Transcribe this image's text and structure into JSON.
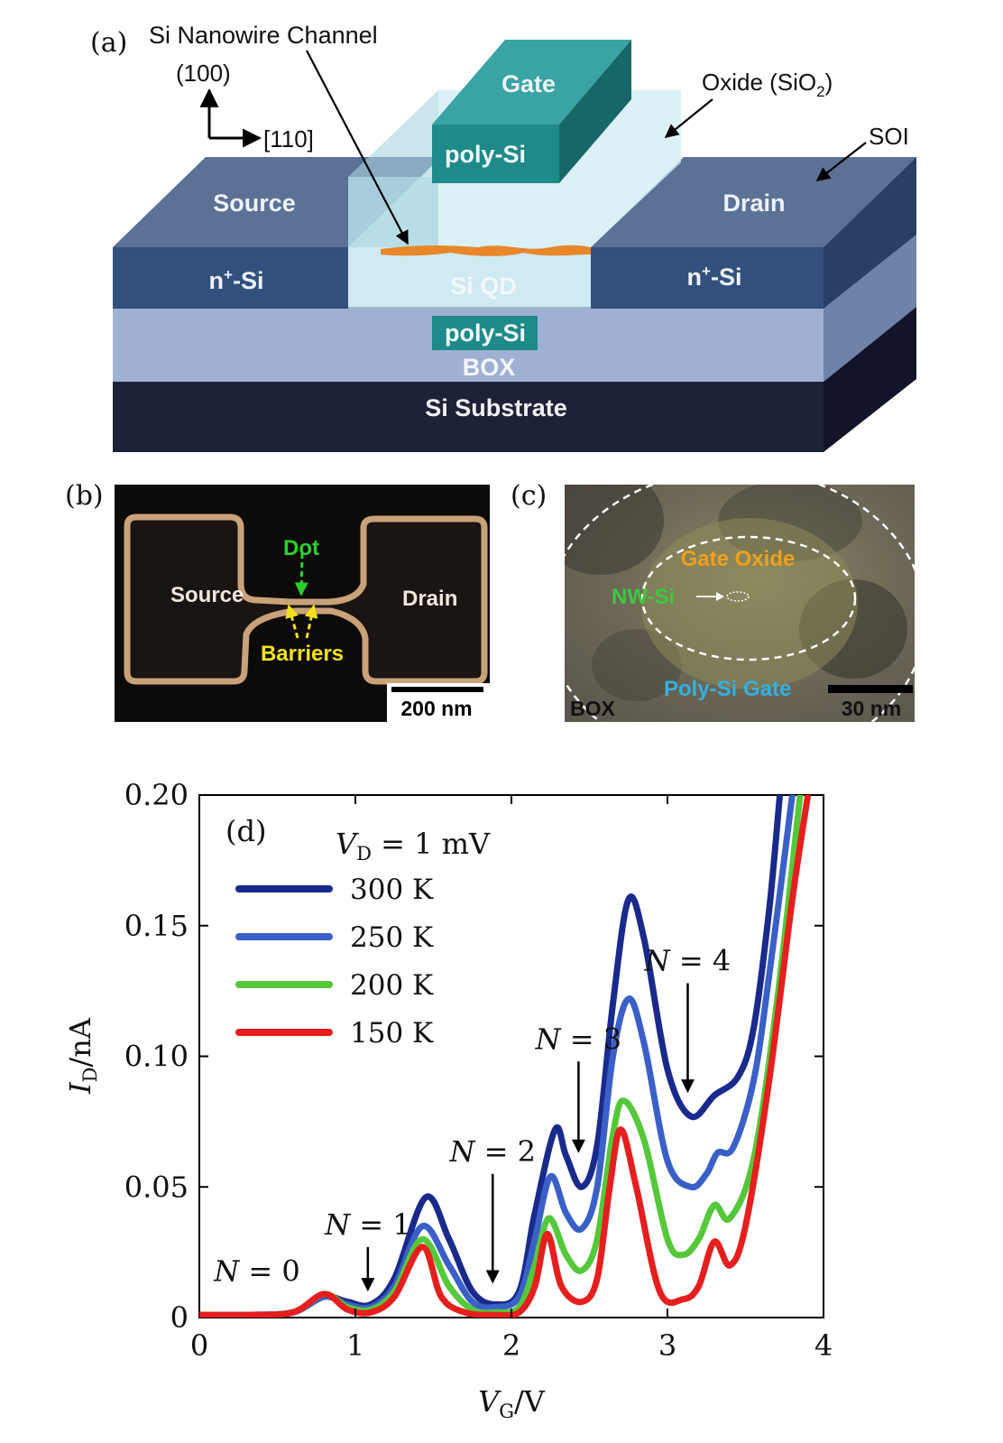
{
  "panel_a": {
    "label": "(a)",
    "orientation": {
      "normal": "(100)",
      "direction": "[110]"
    },
    "labels": {
      "nanowire": "Si Nanowire Channel",
      "gate": "Gate",
      "gate_material": "poly-Si",
      "oxide_prefix": "Oxide (SiO",
      "oxide_sub": "2",
      "oxide_suffix": ")",
      "soi": "SOI",
      "source": "Source",
      "drain": "Drain",
      "source_doping_base": "n",
      "source_doping_sup": "+",
      "source_doping_rest": "-Si",
      "drain_doping_base": "n",
      "drain_doping_sup": "+",
      "drain_doping_rest": "-Si",
      "qd": "Si QD",
      "back_gate": "poly-Si",
      "box": "BOX",
      "substrate": "Si Substrate"
    },
    "colors": {
      "gate_top": "#3aa3a3",
      "gate_front": "#1e8a8a",
      "slab_top": "#5b7296",
      "slab_front": "#32507c",
      "box": "#9fb1d3",
      "substrate": "#1e2236",
      "nanowire": "#e8862a"
    }
  },
  "panel_b": {
    "label": "(b)",
    "source": "Source",
    "drain": "Drain",
    "dot": "Dot",
    "barriers": "Barriers",
    "scalebar": "200 nm",
    "colors": {
      "outline": "#c9a27a",
      "dot": "#2bd12b",
      "barriers": "#f2e219"
    }
  },
  "panel_c": {
    "label": "(c)",
    "gate_oxide": "Gate Oxide",
    "nw": "NW-Si",
    "poly_gate": "Poly-Si Gate",
    "box": "BOX",
    "scalebar": "30 nm",
    "colors": {
      "gate_oxide": "#f0a01a",
      "nw": "#3ec83e",
      "poly_gate": "#33b0e0"
    }
  },
  "chart_data": {
    "type": "line",
    "panel_label": "(d)",
    "title": "",
    "annotation": "V_D = 1 mV",
    "xlabel": "V_G/V",
    "ylabel": "I_D/nA",
    "xlim": [
      0,
      4
    ],
    "ylim": [
      0,
      0.2
    ],
    "x_ticks": [
      "0",
      "1",
      "2",
      "3",
      "4"
    ],
    "y_ticks": [
      "0",
      "0.05",
      "0.10",
      "0.15",
      "0.20"
    ],
    "legend_position": "top-left",
    "series": [
      {
        "name": "300 K",
        "color": "#1a2a8c",
        "points": [
          [
            0,
            0.001
          ],
          [
            0.3,
            0.001
          ],
          [
            0.6,
            0.002
          ],
          [
            0.8,
            0.008
          ],
          [
            0.95,
            0.006
          ],
          [
            1.1,
            0.005
          ],
          [
            1.25,
            0.015
          ],
          [
            1.45,
            0.046
          ],
          [
            1.6,
            0.03
          ],
          [
            1.75,
            0.01
          ],
          [
            1.9,
            0.005
          ],
          [
            2.05,
            0.01
          ],
          [
            2.15,
            0.04
          ],
          [
            2.28,
            0.072
          ],
          [
            2.35,
            0.062
          ],
          [
            2.45,
            0.05
          ],
          [
            2.55,
            0.066
          ],
          [
            2.65,
            0.12
          ],
          [
            2.75,
            0.16
          ],
          [
            2.85,
            0.145
          ],
          [
            3.0,
            0.095
          ],
          [
            3.15,
            0.077
          ],
          [
            3.3,
            0.085
          ],
          [
            3.45,
            0.092
          ],
          [
            3.55,
            0.11
          ],
          [
            3.65,
            0.155
          ],
          [
            3.72,
            0.2
          ]
        ]
      },
      {
        "name": "250 K",
        "color": "#3a60c8",
        "points": [
          [
            0,
            0.001
          ],
          [
            0.3,
            0.001
          ],
          [
            0.6,
            0.002
          ],
          [
            0.8,
            0.008
          ],
          [
            0.95,
            0.005
          ],
          [
            1.1,
            0.004
          ],
          [
            1.25,
            0.012
          ],
          [
            1.43,
            0.035
          ],
          [
            1.6,
            0.02
          ],
          [
            1.75,
            0.006
          ],
          [
            1.9,
            0.004
          ],
          [
            2.05,
            0.008
          ],
          [
            2.15,
            0.03
          ],
          [
            2.25,
            0.054
          ],
          [
            2.35,
            0.04
          ],
          [
            2.45,
            0.034
          ],
          [
            2.55,
            0.05
          ],
          [
            2.65,
            0.1
          ],
          [
            2.75,
            0.122
          ],
          [
            2.85,
            0.105
          ],
          [
            3.0,
            0.06
          ],
          [
            3.15,
            0.05
          ],
          [
            3.25,
            0.055
          ],
          [
            3.32,
            0.063
          ],
          [
            3.42,
            0.065
          ],
          [
            3.55,
            0.09
          ],
          [
            3.65,
            0.13
          ],
          [
            3.8,
            0.2
          ]
        ]
      },
      {
        "name": "200 K",
        "color": "#55c83a",
        "points": [
          [
            0,
            0.001
          ],
          [
            0.3,
            0.001
          ],
          [
            0.6,
            0.002
          ],
          [
            0.8,
            0.009
          ],
          [
            0.95,
            0.004
          ],
          [
            1.1,
            0.003
          ],
          [
            1.25,
            0.01
          ],
          [
            1.43,
            0.03
          ],
          [
            1.6,
            0.012
          ],
          [
            1.75,
            0.003
          ],
          [
            1.9,
            0.002
          ],
          [
            2.05,
            0.004
          ],
          [
            2.15,
            0.02
          ],
          [
            2.24,
            0.038
          ],
          [
            2.35,
            0.024
          ],
          [
            2.45,
            0.018
          ],
          [
            2.55,
            0.03
          ],
          [
            2.65,
            0.07
          ],
          [
            2.72,
            0.083
          ],
          [
            2.85,
            0.068
          ],
          [
            3.0,
            0.03
          ],
          [
            3.1,
            0.024
          ],
          [
            3.2,
            0.03
          ],
          [
            3.3,
            0.043
          ],
          [
            3.4,
            0.038
          ],
          [
            3.55,
            0.06
          ],
          [
            3.7,
            0.12
          ],
          [
            3.85,
            0.2
          ]
        ]
      },
      {
        "name": "150 K",
        "color": "#e61e1e",
        "points": [
          [
            0,
            0.001
          ],
          [
            0.3,
            0.001
          ],
          [
            0.6,
            0.002
          ],
          [
            0.8,
            0.009
          ],
          [
            0.95,
            0.003
          ],
          [
            1.1,
            0.002
          ],
          [
            1.25,
            0.008
          ],
          [
            1.43,
            0.027
          ],
          [
            1.55,
            0.008
          ],
          [
            1.7,
            0.002
          ],
          [
            1.9,
            0.001
          ],
          [
            2.05,
            0.002
          ],
          [
            2.15,
            0.012
          ],
          [
            2.23,
            0.032
          ],
          [
            2.32,
            0.012
          ],
          [
            2.45,
            0.006
          ],
          [
            2.55,
            0.015
          ],
          [
            2.63,
            0.05
          ],
          [
            2.7,
            0.072
          ],
          [
            2.8,
            0.05
          ],
          [
            2.95,
            0.01
          ],
          [
            3.1,
            0.007
          ],
          [
            3.2,
            0.012
          ],
          [
            3.3,
            0.029
          ],
          [
            3.4,
            0.02
          ],
          [
            3.5,
            0.035
          ],
          [
            3.65,
            0.09
          ],
          [
            3.8,
            0.16
          ],
          [
            3.9,
            0.2
          ]
        ]
      }
    ],
    "annotations": [
      {
        "label": "N = 0",
        "type": "text",
        "at": [
          0.37,
          0.012
        ]
      },
      {
        "label": "N = 1",
        "type": "arrow",
        "from": [
          1.08,
          0.027
        ],
        "to": [
          1.08,
          0.011
        ]
      },
      {
        "label": "N = 2",
        "type": "arrow",
        "from": [
          1.88,
          0.055
        ],
        "to": [
          1.88,
          0.014
        ]
      },
      {
        "label": "N = 3",
        "type": "arrow",
        "from": [
          2.43,
          0.098
        ],
        "to": [
          2.43,
          0.064
        ]
      },
      {
        "label": "N = 4",
        "type": "arrow",
        "from": [
          3.13,
          0.128
        ],
        "to": [
          3.13,
          0.087
        ]
      }
    ]
  }
}
